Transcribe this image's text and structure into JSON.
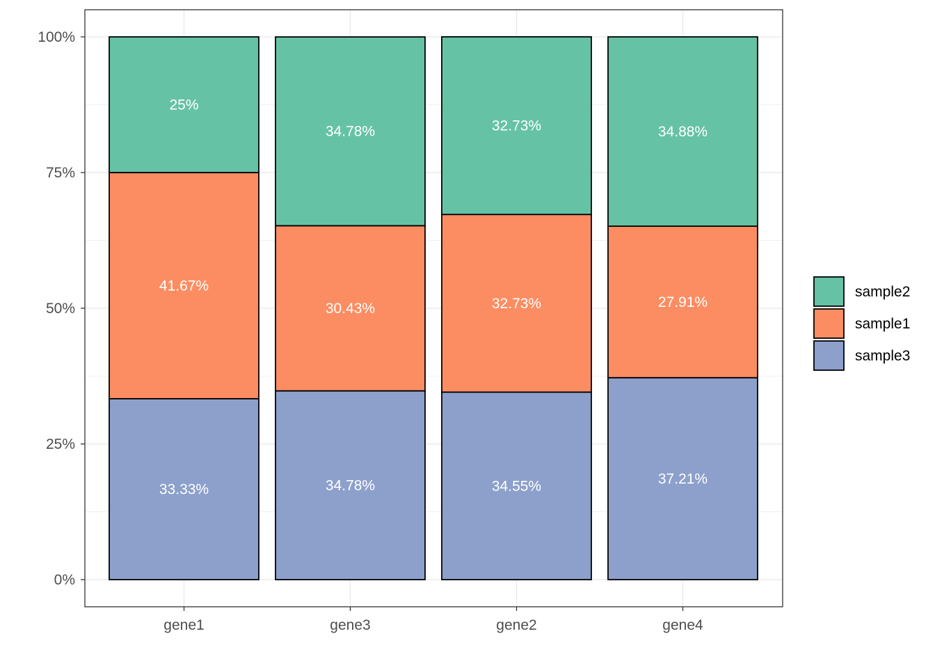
{
  "chart_data": {
    "type": "bar",
    "stacked": true,
    "normalized": true,
    "categories": [
      "gene1",
      "gene3",
      "gene2",
      "gene4"
    ],
    "series": [
      {
        "name": "sample3",
        "values": [
          33.33,
          34.78,
          34.55,
          37.21
        ],
        "labels": [
          "33.33%",
          "34.78%",
          "34.55%",
          "37.21%"
        ],
        "color": "#8DA0CB"
      },
      {
        "name": "sample1",
        "values": [
          41.67,
          30.43,
          32.73,
          27.91
        ],
        "labels": [
          "41.67%",
          "30.43%",
          "32.73%",
          "27.91%"
        ],
        "color": "#FC8D62"
      },
      {
        "name": "sample2",
        "values": [
          25.0,
          34.78,
          32.73,
          34.88
        ],
        "labels": [
          "25%",
          "34.78%",
          "32.73%",
          "34.88%"
        ],
        "color": "#66C2A5"
      }
    ],
    "legend_order": [
      "sample2",
      "sample1",
      "sample3"
    ],
    "legend_position": "right",
    "y_ticks": [
      0,
      25,
      50,
      75,
      100
    ],
    "y_tick_labels": [
      "0%",
      "25%",
      "50%",
      "75%",
      "100%"
    ],
    "ylim": [
      0,
      100
    ],
    "title": "",
    "xlabel": "",
    "ylabel": "",
    "grid": true,
    "bar_outline_color": "#000000"
  }
}
